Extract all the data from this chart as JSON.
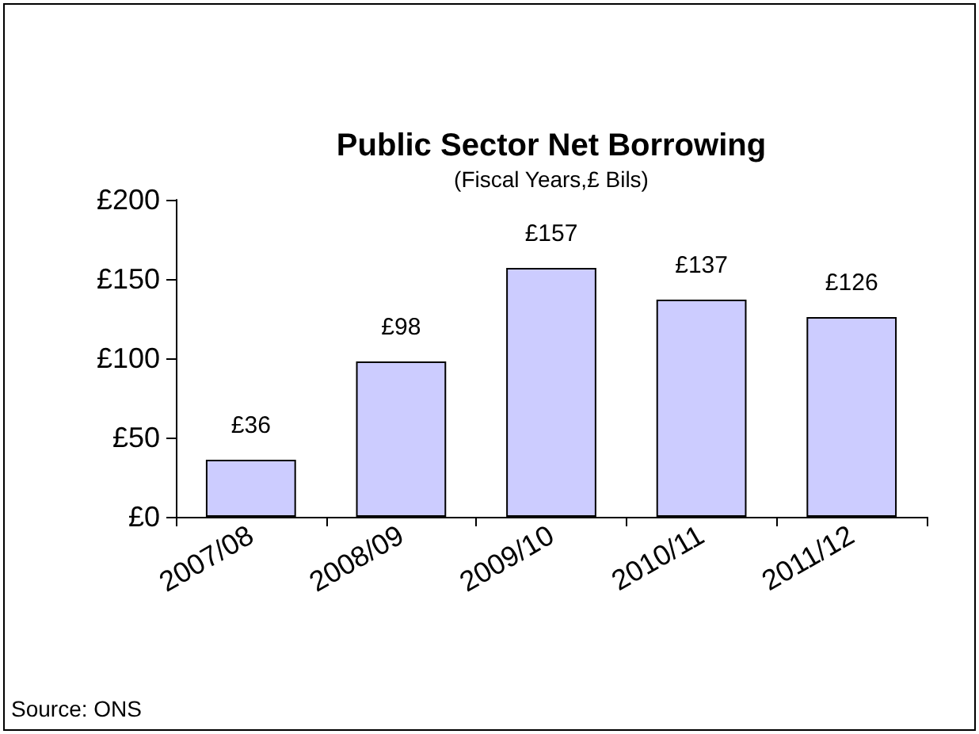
{
  "chart_data": {
    "type": "bar",
    "title": "Public Sector Net Borrowing",
    "subtitle": "(Fiscal Years,£ Bils)",
    "categories": [
      "2007/08",
      "2008/09",
      "2009/10",
      "2010/11",
      "2011/12"
    ],
    "values": [
      36,
      98,
      157,
      137,
      126
    ],
    "value_labels": [
      "£36",
      "£98",
      "£157",
      "£137",
      "£126"
    ],
    "color": "#ccccff",
    "ylim": [
      0,
      200
    ],
    "yticks": [
      {
        "value": 0,
        "label": "£0"
      },
      {
        "value": 50,
        "label": "£50"
      },
      {
        "value": 100,
        "label": "£100"
      },
      {
        "value": 150,
        "label": "£150"
      },
      {
        "value": 200,
        "label": "£200"
      }
    ],
    "grid": false,
    "annotations": [
      "Source: ONS"
    ]
  }
}
